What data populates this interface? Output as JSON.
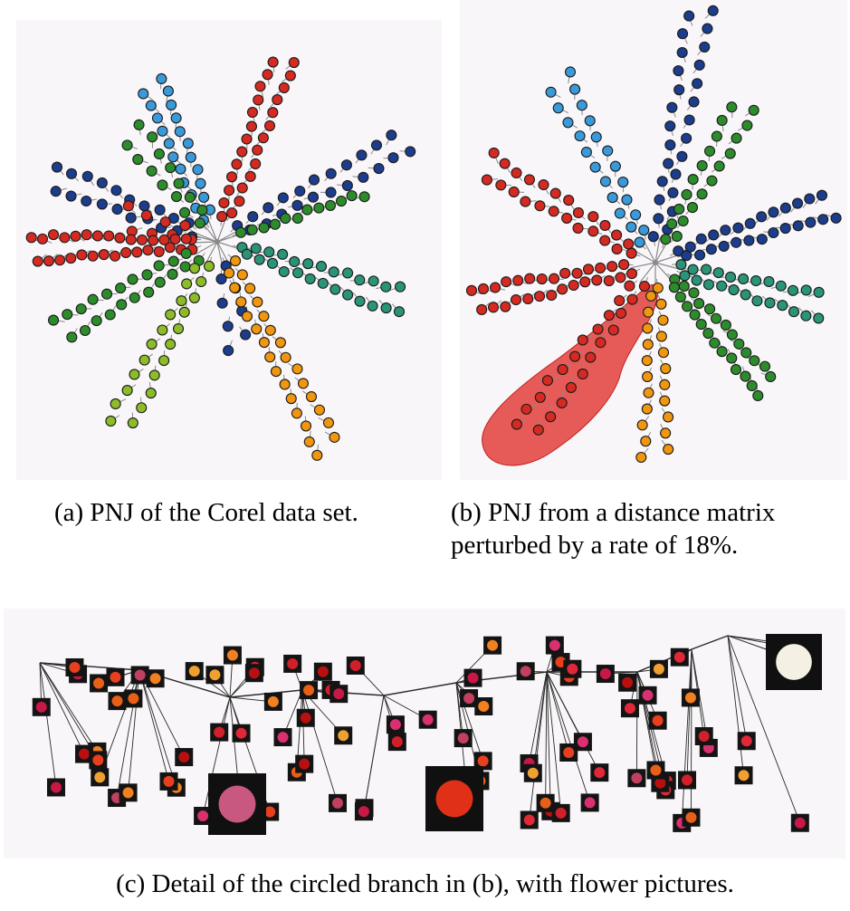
{
  "captions": {
    "a": "(a) PNJ of the Corel data set.",
    "b_line1": "(b) PNJ from a distance matrix",
    "b_line2": "perturbed by a rate of 18%.",
    "c": "(c) Detail of the circled branch in (b), with flower pictures."
  },
  "colors": {
    "panel_bg": "#f8f6f8",
    "edge": "#8a8a8a",
    "node_outline": "#1a1a1a",
    "light_blue": "#3a9ad9",
    "red": "#d42a22",
    "green": "#2c8c2c",
    "dark_blue": "#1c3c8c",
    "teal": "#2a9478",
    "orange": "#f0960f",
    "yellow_green": "#8cbc28",
    "highlight": "#e0302a",
    "tree_line": "#2a2a2a"
  },
  "panels": {
    "a": {
      "name": "pnj-corel-tree"
    },
    "b": {
      "name": "pnj-perturbed-tree",
      "highlight": "circled-branch"
    },
    "c": {
      "name": "circled-branch-detail",
      "content": "flower-thumbnails"
    }
  }
}
